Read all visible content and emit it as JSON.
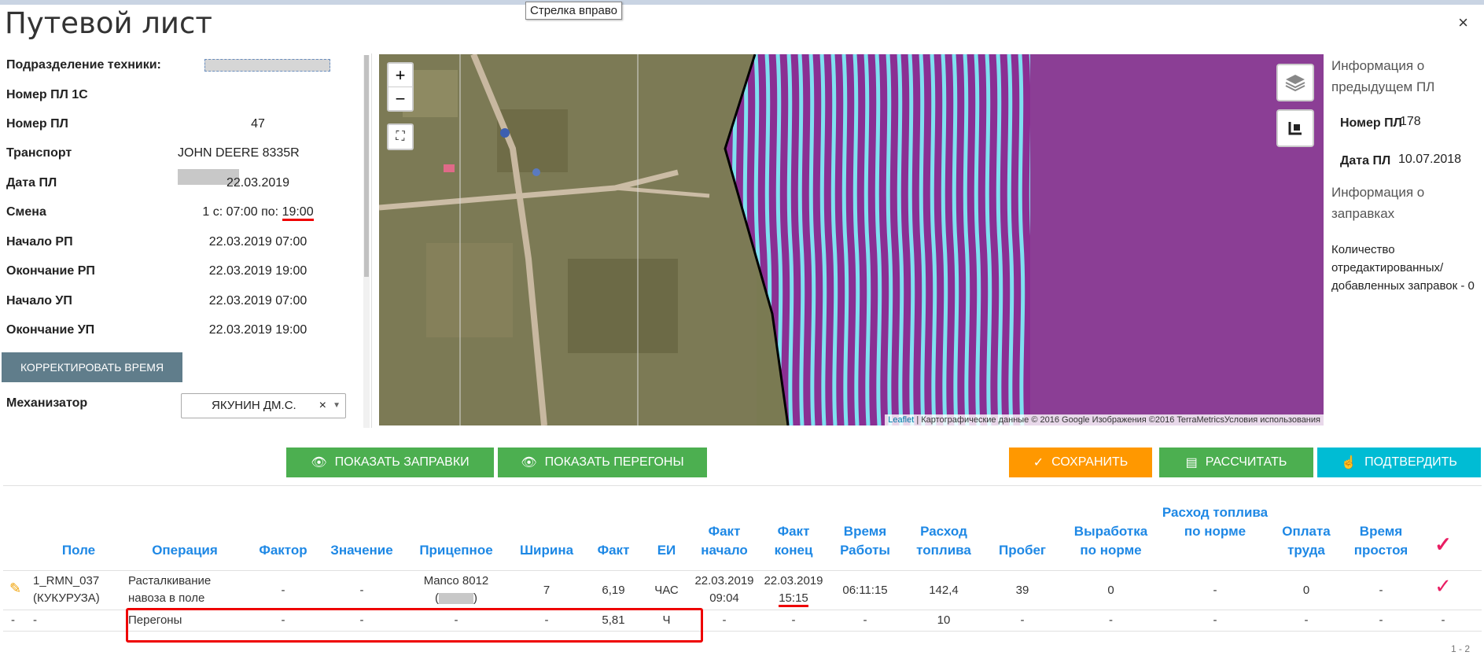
{
  "title": "Путевой лист",
  "tooltip": "Стрелка вправо",
  "close_glyph": "×",
  "form": {
    "fields": [
      {
        "label": "Подразделение техники:",
        "value": ""
      },
      {
        "label": "Номер ПЛ 1С",
        "value": ""
      },
      {
        "label": "Номер ПЛ",
        "value": "47"
      },
      {
        "label": "Транспорт",
        "value": "JOHN DEERE 8335R"
      },
      {
        "label": "Дата ПЛ",
        "value": "22.03.2019"
      },
      {
        "label": "Смена",
        "value": "1 с: 07:00 по:",
        "value_end": "19:00"
      },
      {
        "label": "Начало РП",
        "value": "22.03.2019 07:00"
      },
      {
        "label": "Окончание РП",
        "value": "22.03.2019 19:00"
      },
      {
        "label": "Начало УП",
        "value": "22.03.2019 07:00"
      },
      {
        "label": "Окончание УП",
        "value": "22.03.2019 19:00"
      }
    ],
    "correct_time_button": "КОРРЕКТИРОВАТЬ ВРЕМЯ",
    "operator_label": "Механизатор",
    "operator_value": "ЯКУНИН ДМ.С.",
    "operator_clear": "×"
  },
  "map": {
    "zoom_in": "+",
    "zoom_out": "−",
    "attribution_leaflet": "Leaflet",
    "attribution_rest": " | Картографические данные © 2016 Google Изображения ©2016 TerraMetricsУсловия использования"
  },
  "info": {
    "prev_title": "Информация о предыдущем ПЛ",
    "num_label": "Номер ПЛ",
    "num_value": "178",
    "date_label": "Дата ПЛ",
    "date_value": "10.07.2018",
    "fuel_title": "Информация о заправках",
    "edited_text": "Количество отредактированных/ добавленных заправок - 0"
  },
  "buttons": {
    "show_refuels": "ПОКАЗАТЬ ЗАПРАВКИ",
    "show_transfers": "ПОКАЗАТЬ ПЕРЕГОНЫ",
    "save": "СОХРАНИТЬ",
    "calculate": "РАССЧИТАТЬ",
    "confirm": "ПОДТВЕРДИТЬ",
    "colors": {
      "green": "#4caf50",
      "orange": "#ff9800",
      "cyan": "#00bcd4"
    }
  },
  "table": {
    "headers": [
      "Поле",
      "Операция",
      "Фактор",
      "Значение",
      "Прицепное",
      "Ширина",
      "Факт",
      "ЕИ",
      "Факт начало",
      "Факт конец",
      "Время Работы",
      "Расход топлива",
      "Пробег",
      "Выработка по норме",
      "Расход топлива по норме",
      "Оплата труда",
      "Время простоя"
    ],
    "row1": {
      "pole": "1_RMN_037 (КУКУРУЗА)",
      "operation": "Расталкивание навоза в поле",
      "factor": "-",
      "value": "-",
      "trailer": "Manco 8012",
      "width": "7",
      "fact": "6,19",
      "unit": "ЧАС",
      "start": "22.03.2019 09:04",
      "end_date": "22.03.2019",
      "end_time": "15:15",
      "work_time": "06:11:15",
      "fuel": "142,4",
      "mileage": "39",
      "norm_output": "0",
      "norm_fuel": "-",
      "pay": "0",
      "idle": "-"
    },
    "row2": {
      "c0": "-",
      "pole": "-",
      "operation": "Перегоны",
      "factor": "-",
      "value": "-",
      "trailer": "-",
      "width": "-",
      "fact": "5,81",
      "unit": "Ч",
      "start": "-",
      "end": "-",
      "work_time": "-",
      "fuel": "10",
      "mileage": "-",
      "norm_output": "-",
      "norm_fuel": "-",
      "pay": "-",
      "idle": "-",
      "last": "-"
    },
    "pager": "1 - 2"
  }
}
